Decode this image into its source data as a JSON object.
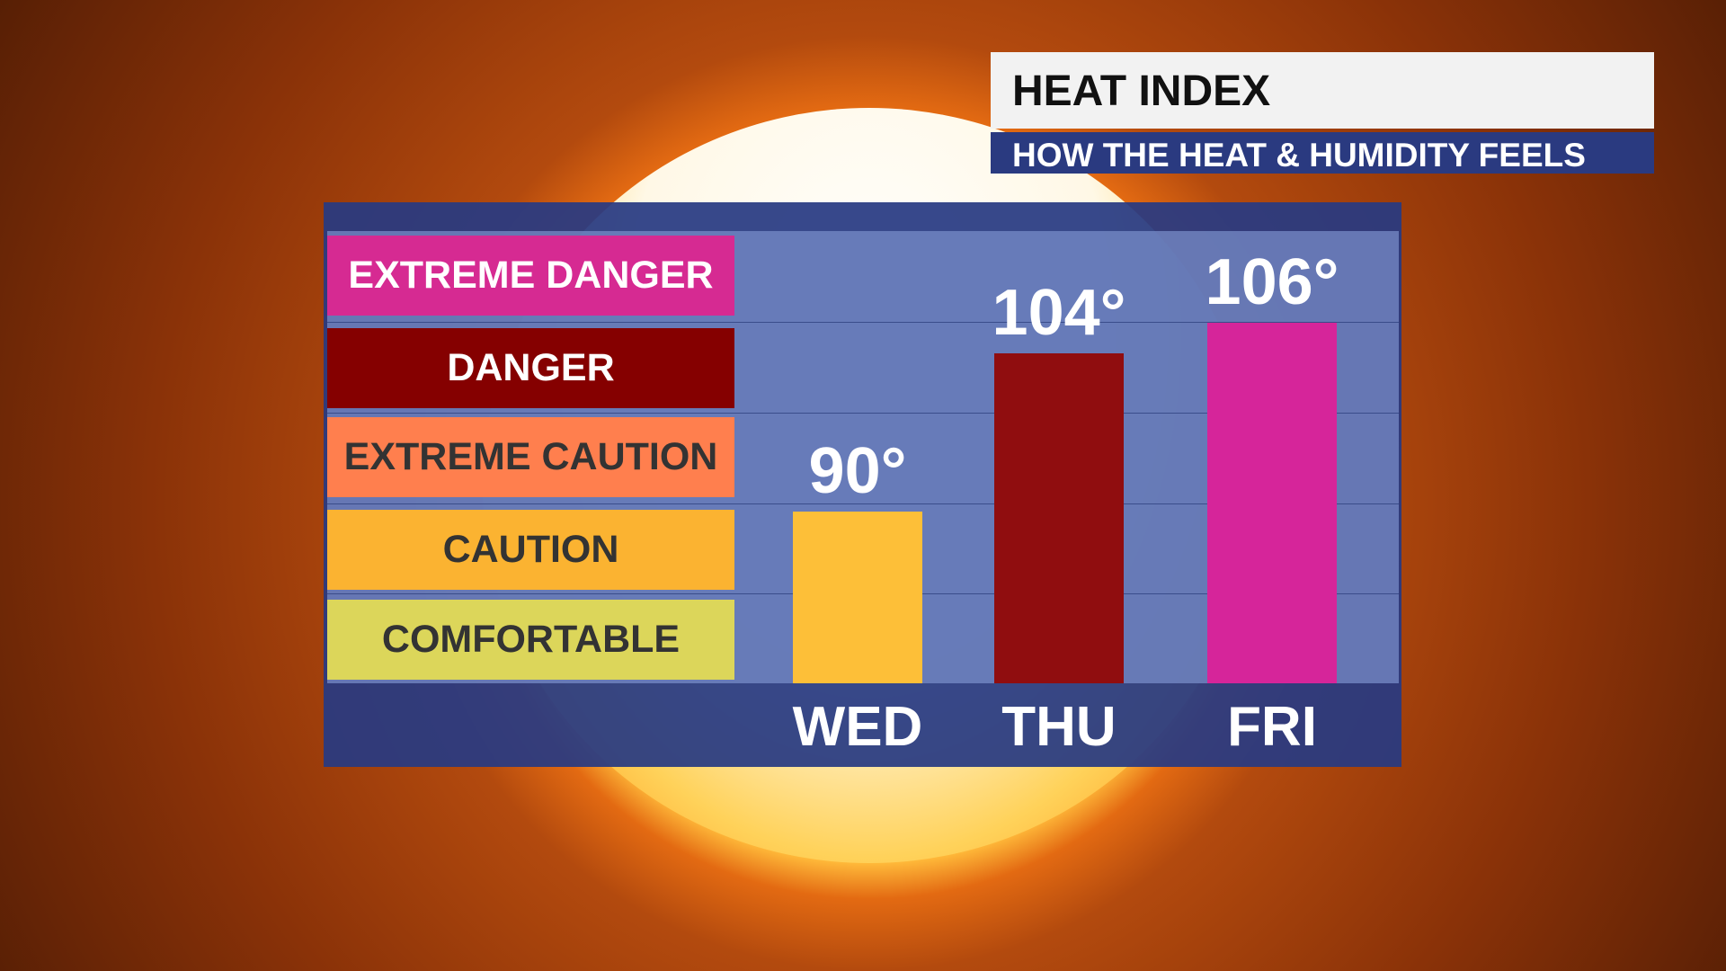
{
  "header": {
    "title": "HEAT INDEX",
    "subtitle": "HOW THE HEAT & HUMIDITY FEELS"
  },
  "legend": [
    {
      "label": "EXTREME DANGER",
      "color": "#d62a92",
      "text_color": "#ffffff"
    },
    {
      "label": "DANGER",
      "color": "#850000",
      "text_color": "#ffffff"
    },
    {
      "label": "EXTREME CAUTION",
      "color": "#ff7f4e",
      "text_color": "#333333"
    },
    {
      "label": "CAUTION",
      "color": "#fbb331",
      "text_color": "#333333"
    },
    {
      "label": "COMFORTABLE",
      "color": "#dcd65a",
      "text_color": "#333333"
    }
  ],
  "chart_data": {
    "type": "bar",
    "categories": [
      "WED",
      "THU",
      "FRI"
    ],
    "values": [
      90,
      104,
      106
    ],
    "value_labels": [
      "90°",
      "104°",
      "106°"
    ],
    "bar_colors": [
      "#fdbf38",
      "#900d0f",
      "#d6259a"
    ],
    "bar_levels": [
      "CAUTION",
      "DANGER",
      "EXTREME DANGER"
    ],
    "title": "HEAT INDEX",
    "grid": true
  }
}
